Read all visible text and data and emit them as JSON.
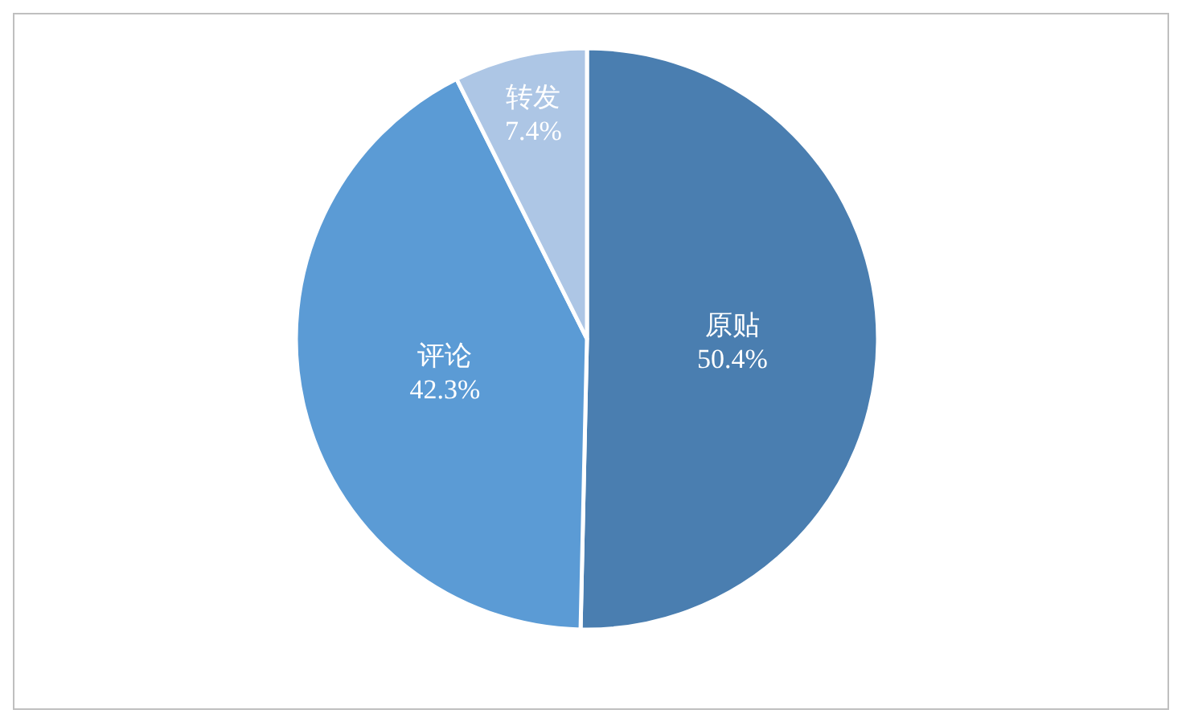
{
  "chart_data": {
    "type": "pie",
    "categories": [
      "原贴",
      "评论",
      "转发"
    ],
    "values": [
      50.4,
      42.3,
      7.4
    ],
    "colors": [
      "#4a7eb0",
      "#5b9bd5",
      "#adc6e5"
    ],
    "value_labels": [
      "50.4%",
      "42.3%",
      "7.4%"
    ],
    "legend": false
  }
}
